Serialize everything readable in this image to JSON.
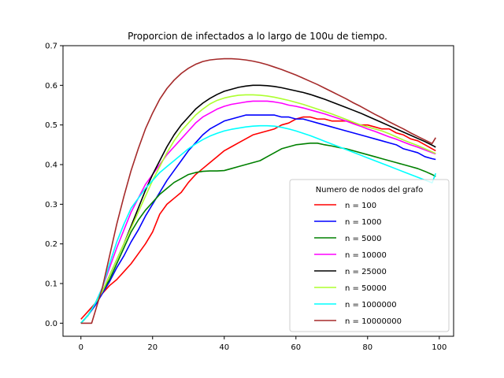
{
  "chart_data": {
    "type": "line",
    "title": "Proporcion de infectados a lo largo de 100u de tiempo.",
    "xlabel": "",
    "ylabel": "",
    "xlim": [
      -5,
      104
    ],
    "ylim": [
      -0.033,
      0.7
    ],
    "x_ticks": [
      0,
      20,
      40,
      60,
      80,
      100
    ],
    "y_ticks": [
      0.0,
      0.1,
      0.2,
      0.3,
      0.4,
      0.5,
      0.6,
      0.7
    ],
    "grid": false,
    "legend": {
      "title": "Numero de nodos del grafo",
      "position": "lower-right"
    },
    "series": [
      {
        "name": "n = 100",
        "color": "#ff0000",
        "x": [
          0,
          2,
          4,
          6,
          8,
          10,
          12,
          14,
          16,
          18,
          20,
          22,
          24,
          26,
          28,
          30,
          32,
          34,
          36,
          38,
          40,
          42,
          44,
          46,
          48,
          50,
          52,
          54,
          56,
          58,
          60,
          62,
          64,
          66,
          68,
          70,
          72,
          74,
          76,
          78,
          80,
          82,
          84,
          86,
          88,
          90,
          92,
          94,
          96,
          98,
          99
        ],
        "y": [
          0.01,
          0.03,
          0.05,
          0.075,
          0.095,
          0.11,
          0.13,
          0.15,
          0.175,
          0.2,
          0.23,
          0.275,
          0.3,
          0.315,
          0.33,
          0.355,
          0.375,
          0.39,
          0.405,
          0.42,
          0.435,
          0.445,
          0.455,
          0.465,
          0.475,
          0.48,
          0.485,
          0.49,
          0.5,
          0.505,
          0.515,
          0.52,
          0.52,
          0.515,
          0.515,
          0.51,
          0.51,
          0.51,
          0.505,
          0.5,
          0.5,
          0.495,
          0.49,
          0.49,
          0.48,
          0.475,
          0.465,
          0.46,
          0.45,
          0.44,
          0.435
        ]
      },
      {
        "name": "n = 1000",
        "color": "#0000ff",
        "x": [
          0,
          2,
          4,
          6,
          8,
          10,
          12,
          14,
          16,
          18,
          20,
          22,
          24,
          26,
          28,
          30,
          32,
          34,
          36,
          38,
          40,
          42,
          44,
          46,
          48,
          50,
          52,
          54,
          56,
          58,
          60,
          62,
          64,
          66,
          68,
          70,
          72,
          74,
          76,
          78,
          80,
          82,
          84,
          86,
          88,
          90,
          92,
          94,
          96,
          98,
          99
        ],
        "y": [
          0.0,
          0.02,
          0.045,
          0.075,
          0.105,
          0.14,
          0.17,
          0.205,
          0.235,
          0.27,
          0.3,
          0.33,
          0.36,
          0.385,
          0.41,
          0.435,
          0.455,
          0.475,
          0.49,
          0.5,
          0.51,
          0.515,
          0.52,
          0.525,
          0.525,
          0.525,
          0.525,
          0.525,
          0.52,
          0.52,
          0.515,
          0.515,
          0.51,
          0.505,
          0.5,
          0.495,
          0.49,
          0.485,
          0.48,
          0.475,
          0.47,
          0.465,
          0.46,
          0.455,
          0.45,
          0.44,
          0.435,
          0.43,
          0.42,
          0.415,
          0.413
        ]
      },
      {
        "name": "n = 5000",
        "color": "#008000",
        "x": [
          0,
          2,
          4,
          6,
          8,
          10,
          12,
          14,
          16,
          18,
          20,
          22,
          24,
          26,
          28,
          30,
          32,
          34,
          36,
          38,
          40,
          42,
          44,
          46,
          48,
          50,
          52,
          54,
          56,
          58,
          60,
          62,
          64,
          66,
          68,
          70,
          72,
          74,
          76,
          78,
          80,
          82,
          84,
          86,
          88,
          90,
          92,
          94,
          96,
          98,
          99
        ],
        "y": [
          0.0,
          0.02,
          0.05,
          0.08,
          0.11,
          0.15,
          0.19,
          0.23,
          0.26,
          0.285,
          0.305,
          0.325,
          0.34,
          0.355,
          0.365,
          0.375,
          0.38,
          0.383,
          0.384,
          0.384,
          0.385,
          0.39,
          0.395,
          0.4,
          0.405,
          0.41,
          0.42,
          0.43,
          0.44,
          0.445,
          0.45,
          0.452,
          0.454,
          0.454,
          0.45,
          0.447,
          0.443,
          0.44,
          0.435,
          0.43,
          0.425,
          0.42,
          0.415,
          0.41,
          0.405,
          0.4,
          0.395,
          0.39,
          0.383,
          0.375,
          0.37
        ]
      },
      {
        "name": "n = 10000",
        "color": "#ff00ff",
        "x": [
          0,
          2,
          4,
          6,
          8,
          10,
          12,
          14,
          16,
          18,
          20,
          22,
          24,
          26,
          28,
          30,
          32,
          34,
          36,
          38,
          40,
          42,
          44,
          46,
          48,
          50,
          52,
          54,
          56,
          58,
          60,
          62,
          64,
          66,
          68,
          70,
          72,
          74,
          76,
          78,
          80,
          82,
          84,
          86,
          88,
          90,
          92,
          94,
          96,
          98,
          99
        ],
        "y": [
          0.0,
          0.02,
          0.05,
          0.09,
          0.14,
          0.19,
          0.235,
          0.28,
          0.315,
          0.35,
          0.375,
          0.4,
          0.425,
          0.445,
          0.465,
          0.485,
          0.505,
          0.52,
          0.53,
          0.54,
          0.547,
          0.552,
          0.555,
          0.558,
          0.56,
          0.56,
          0.56,
          0.558,
          0.555,
          0.55,
          0.547,
          0.543,
          0.538,
          0.533,
          0.528,
          0.522,
          0.516,
          0.51,
          0.503,
          0.497,
          0.49,
          0.484,
          0.477,
          0.47,
          0.464,
          0.457,
          0.45,
          0.444,
          0.437,
          0.43,
          0.427
        ]
      },
      {
        "name": "n = 25000",
        "color": "#000000",
        "x": [
          0,
          2,
          4,
          6,
          8,
          10,
          12,
          14,
          16,
          18,
          20,
          22,
          24,
          26,
          28,
          30,
          32,
          34,
          36,
          38,
          40,
          42,
          44,
          46,
          48,
          50,
          52,
          54,
          56,
          58,
          60,
          62,
          64,
          66,
          68,
          70,
          72,
          74,
          76,
          78,
          80,
          82,
          84,
          86,
          88,
          90,
          92,
          94,
          96,
          98,
          99
        ],
        "y": [
          0.0,
          0.02,
          0.05,
          0.08,
          0.12,
          0.16,
          0.2,
          0.245,
          0.29,
          0.335,
          0.375,
          0.41,
          0.445,
          0.475,
          0.5,
          0.52,
          0.54,
          0.555,
          0.567,
          0.577,
          0.585,
          0.59,
          0.595,
          0.598,
          0.6,
          0.6,
          0.599,
          0.597,
          0.594,
          0.59,
          0.586,
          0.582,
          0.577,
          0.571,
          0.565,
          0.558,
          0.551,
          0.544,
          0.537,
          0.53,
          0.522,
          0.514,
          0.506,
          0.498,
          0.49,
          0.482,
          0.474,
          0.466,
          0.458,
          0.449,
          0.444
        ]
      },
      {
        "name": "n = 50000",
        "color": "#adff2f",
        "x": [
          0,
          2,
          4,
          6,
          8,
          10,
          12,
          14,
          16,
          18,
          20,
          22,
          24,
          26,
          28,
          30,
          32,
          34,
          36,
          38,
          40,
          42,
          44,
          46,
          48,
          50,
          52,
          54,
          56,
          58,
          60,
          62,
          64,
          66,
          68,
          70,
          72,
          74,
          76,
          78,
          80,
          82,
          84,
          86,
          88,
          90,
          92,
          94,
          96,
          98,
          99
        ],
        "y": [
          0.0,
          0.02,
          0.05,
          0.08,
          0.12,
          0.16,
          0.2,
          0.24,
          0.28,
          0.32,
          0.36,
          0.395,
          0.43,
          0.46,
          0.485,
          0.505,
          0.525,
          0.54,
          0.553,
          0.562,
          0.568,
          0.572,
          0.575,
          0.576,
          0.576,
          0.575,
          0.573,
          0.57,
          0.566,
          0.562,
          0.557,
          0.552,
          0.546,
          0.54,
          0.534,
          0.528,
          0.521,
          0.514,
          0.507,
          0.5,
          0.495,
          0.49,
          0.485,
          0.478,
          0.47,
          0.462,
          0.455,
          0.448,
          0.44,
          0.432,
          0.428
        ]
      },
      {
        "name": "n = 1000000",
        "color": "#00ffff",
        "x": [
          0,
          2,
          4,
          6,
          8,
          10,
          12,
          14,
          16,
          18,
          20,
          22,
          24,
          26,
          28,
          30,
          32,
          34,
          36,
          38,
          40,
          42,
          44,
          46,
          48,
          50,
          52,
          54,
          56,
          58,
          60,
          62,
          64,
          66,
          68,
          70,
          72,
          74,
          76,
          78,
          80,
          82,
          84,
          86,
          88,
          90,
          92,
          94,
          96,
          98,
          99
        ],
        "y": [
          0.0,
          0.02,
          0.05,
          0.09,
          0.15,
          0.205,
          0.25,
          0.29,
          0.315,
          0.34,
          0.36,
          0.38,
          0.395,
          0.41,
          0.425,
          0.44,
          0.452,
          0.463,
          0.472,
          0.479,
          0.485,
          0.489,
          0.492,
          0.495,
          0.497,
          0.498,
          0.498,
          0.497,
          0.494,
          0.49,
          0.485,
          0.479,
          0.473,
          0.466,
          0.459,
          0.452,
          0.445,
          0.438,
          0.431,
          0.424,
          0.417,
          0.41,
          0.403,
          0.396,
          0.389,
          0.382,
          0.375,
          0.368,
          0.361,
          0.354,
          0.378
        ]
      },
      {
        "name": "n = 10000000",
        "color": "#a52a2a",
        "x": [
          0,
          3,
          4,
          6,
          8,
          10,
          12,
          14,
          16,
          18,
          20,
          22,
          24,
          26,
          28,
          30,
          32,
          34,
          36,
          38,
          40,
          42,
          44,
          46,
          48,
          50,
          52,
          54,
          56,
          58,
          60,
          62,
          64,
          66,
          68,
          70,
          72,
          74,
          76,
          78,
          80,
          82,
          84,
          86,
          88,
          90,
          92,
          94,
          96,
          98,
          99
        ],
        "y": [
          0.0,
          0.0,
          0.03,
          0.09,
          0.17,
          0.25,
          0.32,
          0.385,
          0.44,
          0.49,
          0.53,
          0.565,
          0.592,
          0.613,
          0.63,
          0.643,
          0.653,
          0.66,
          0.664,
          0.666,
          0.667,
          0.667,
          0.666,
          0.664,
          0.661,
          0.657,
          0.652,
          0.646,
          0.64,
          0.633,
          0.626,
          0.618,
          0.61,
          0.602,
          0.593,
          0.584,
          0.575,
          0.566,
          0.556,
          0.547,
          0.537,
          0.527,
          0.518,
          0.508,
          0.499,
          0.49,
          0.48,
          0.471,
          0.462,
          0.453,
          0.468
        ]
      }
    ]
  }
}
